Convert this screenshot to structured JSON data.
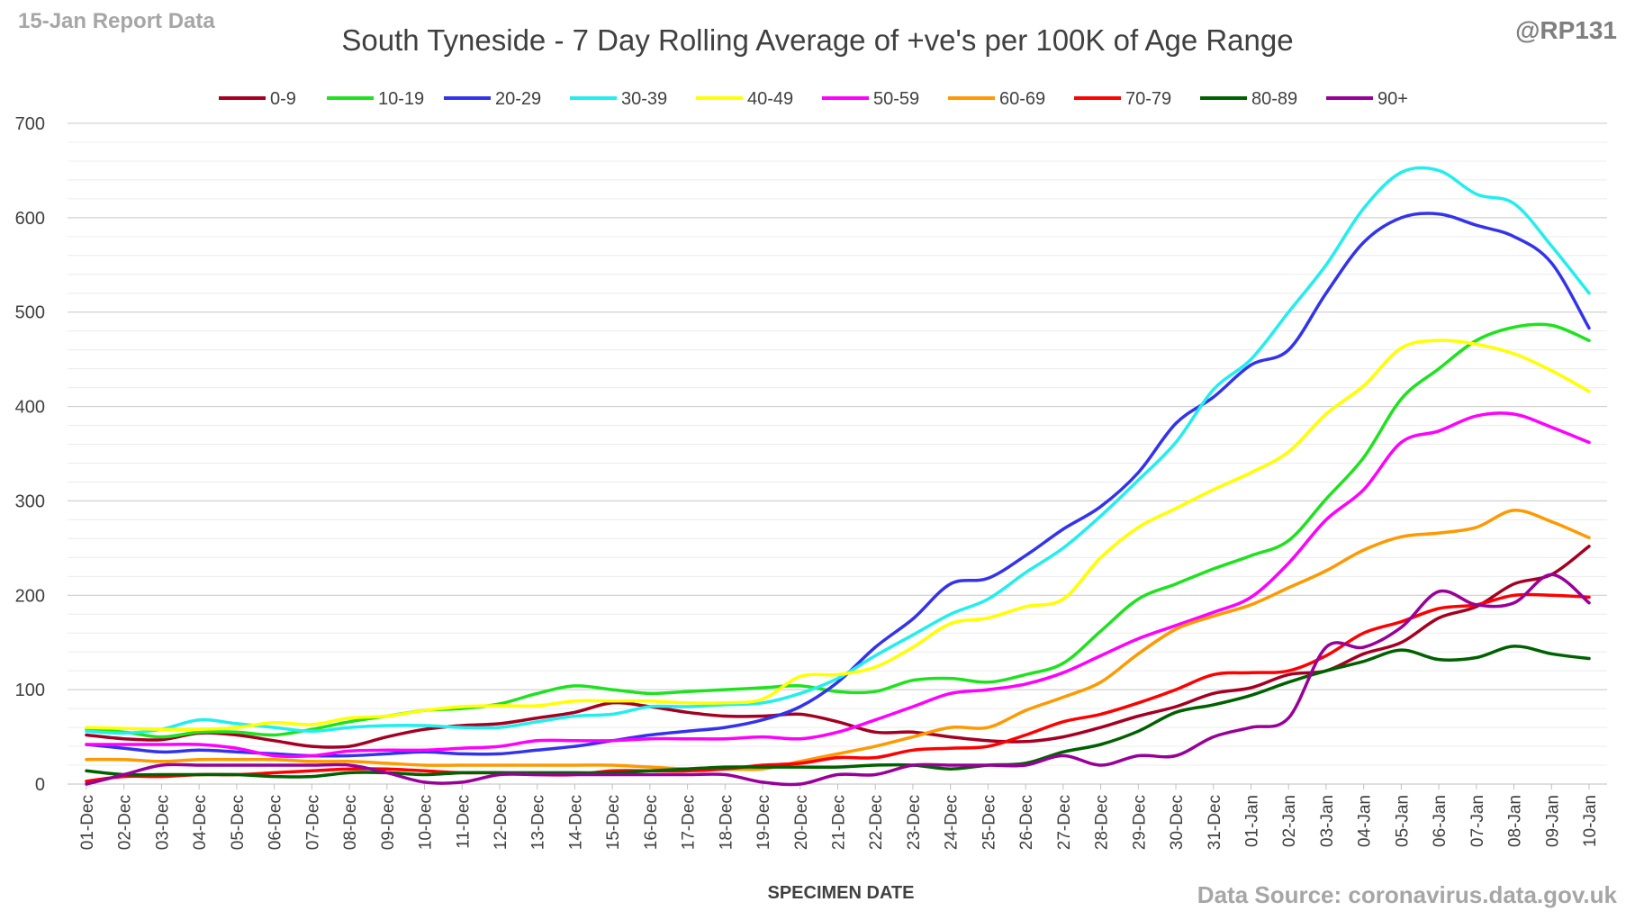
{
  "header": {
    "report_label": "15-Jan Report Data",
    "handle": "@RP131",
    "title": "South Tyneside - 7 Day Rolling Average of +ve's per 100K of Age Range"
  },
  "footer": {
    "source": "Data Source: coronavirus.data.gov.uk"
  },
  "chart_data": {
    "type": "line",
    "title": "South Tyneside - 7 Day Rolling Average of +ve's per 100K of Age Range",
    "xlabel": "SPECIMEN DATE",
    "ylabel": "",
    "ylim": [
      0,
      700
    ],
    "yticks": [
      0,
      100,
      200,
      300,
      400,
      500,
      600,
      700
    ],
    "grid": true,
    "legend_position": "top",
    "x": [
      "01-Dec",
      "02-Dec",
      "03-Dec",
      "04-Dec",
      "05-Dec",
      "06-Dec",
      "07-Dec",
      "08-Dec",
      "09-Dec",
      "10-Dec",
      "11-Dec",
      "12-Dec",
      "13-Dec",
      "14-Dec",
      "15-Dec",
      "16-Dec",
      "17-Dec",
      "18-Dec",
      "19-Dec",
      "20-Dec",
      "21-Dec",
      "22-Dec",
      "23-Dec",
      "24-Dec",
      "25-Dec",
      "26-Dec",
      "27-Dec",
      "28-Dec",
      "29-Dec",
      "30-Dec",
      "31-Dec",
      "01-Jan",
      "02-Jan",
      "03-Jan",
      "04-Jan",
      "05-Jan",
      "06-Jan",
      "07-Jan",
      "08-Jan",
      "09-Jan",
      "10-Jan"
    ],
    "series": [
      {
        "name": "0-9",
        "color": "#a50021",
        "values": [
          52,
          48,
          47,
          54,
          52,
          46,
          40,
          40,
          50,
          58,
          62,
          64,
          70,
          76,
          86,
          82,
          76,
          72,
          72,
          74,
          66,
          55,
          55,
          50,
          46,
          45,
          50,
          60,
          72,
          82,
          96,
          102,
          116,
          120,
          138,
          150,
          176,
          188,
          212,
          222,
          252
        ]
      },
      {
        "name": "10-19",
        "color": "#1fe21f",
        "values": [
          58,
          55,
          50,
          55,
          55,
          52,
          58,
          66,
          72,
          78,
          80,
          85,
          96,
          104,
          100,
          96,
          98,
          100,
          102,
          104,
          98,
          98,
          110,
          112,
          108,
          116,
          128,
          162,
          196,
          212,
          228,
          242,
          258,
          302,
          346,
          408,
          440,
          470,
          484,
          486,
          470
        ]
      },
      {
        "name": "20-29",
        "color": "#3333ee",
        "values": [
          42,
          38,
          34,
          36,
          34,
          32,
          30,
          30,
          32,
          34,
          32,
          32,
          36,
          40,
          46,
          52,
          56,
          60,
          68,
          82,
          108,
          145,
          175,
          212,
          218,
          242,
          270,
          294,
          330,
          382,
          410,
          444,
          460,
          520,
          574,
          600,
          604,
          592,
          580,
          552,
          483
        ]
      },
      {
        "name": "30-39",
        "color": "#22eeee",
        "values": [
          56,
          54,
          58,
          68,
          64,
          60,
          56,
          60,
          62,
          62,
          60,
          60,
          66,
          72,
          74,
          82,
          82,
          84,
          86,
          96,
          112,
          136,
          158,
          180,
          196,
          224,
          250,
          284,
          322,
          362,
          418,
          450,
          500,
          550,
          610,
          648,
          650,
          625,
          615,
          570,
          520
        ]
      },
      {
        "name": "40-49",
        "color": "#ffff00",
        "values": [
          60,
          59,
          58,
          58,
          60,
          65,
          63,
          70,
          72,
          78,
          82,
          83,
          83,
          88,
          88,
          88,
          86,
          86,
          90,
          114,
          116,
          124,
          145,
          170,
          176,
          188,
          196,
          240,
          272,
          292,
          312,
          330,
          352,
          392,
          422,
          462,
          470,
          466,
          456,
          438,
          416
        ]
      },
      {
        "name": "50-59",
        "color": "#ff00ff",
        "values": [
          42,
          42,
          42,
          42,
          38,
          30,
          30,
          35,
          36,
          36,
          38,
          40,
          46,
          46,
          46,
          48,
          48,
          48,
          50,
          48,
          55,
          68,
          82,
          96,
          100,
          106,
          118,
          136,
          154,
          168,
          182,
          198,
          234,
          280,
          312,
          362,
          374,
          390,
          392,
          378,
          362
        ]
      },
      {
        "name": "60-69",
        "color": "#ff9900",
        "values": [
          26,
          26,
          24,
          26,
          26,
          26,
          24,
          24,
          22,
          20,
          20,
          20,
          20,
          20,
          20,
          18,
          16,
          16,
          16,
          24,
          32,
          40,
          50,
          60,
          60,
          78,
          92,
          108,
          138,
          164,
          178,
          190,
          208,
          226,
          248,
          262,
          266,
          272,
          290,
          278,
          261
        ]
      },
      {
        "name": "70-79",
        "color": "#ff0000",
        "values": [
          3,
          8,
          8,
          10,
          10,
          12,
          14,
          16,
          16,
          14,
          12,
          12,
          10,
          10,
          14,
          14,
          14,
          16,
          20,
          22,
          28,
          28,
          36,
          38,
          40,
          52,
          66,
          74,
          86,
          100,
          116,
          118,
          120,
          136,
          160,
          172,
          186,
          190,
          200,
          200,
          198
        ]
      },
      {
        "name": "80-89",
        "color": "#006100",
        "values": [
          14,
          10,
          10,
          10,
          10,
          8,
          8,
          12,
          12,
          10,
          12,
          12,
          12,
          12,
          12,
          14,
          16,
          18,
          18,
          18,
          18,
          20,
          20,
          16,
          20,
          22,
          34,
          42,
          56,
          76,
          84,
          94,
          108,
          120,
          130,
          142,
          132,
          134,
          146,
          138,
          133
        ]
      },
      {
        "name": "90+",
        "color": "#990099",
        "values": [
          0,
          10,
          20,
          20,
          20,
          20,
          20,
          20,
          12,
          2,
          2,
          10,
          10,
          10,
          10,
          10,
          10,
          10,
          2,
          0,
          10,
          10,
          20,
          20,
          20,
          20,
          30,
          20,
          30,
          30,
          50,
          60,
          70,
          145,
          145,
          166,
          204,
          190,
          192,
          222,
          192
        ]
      }
    ]
  }
}
